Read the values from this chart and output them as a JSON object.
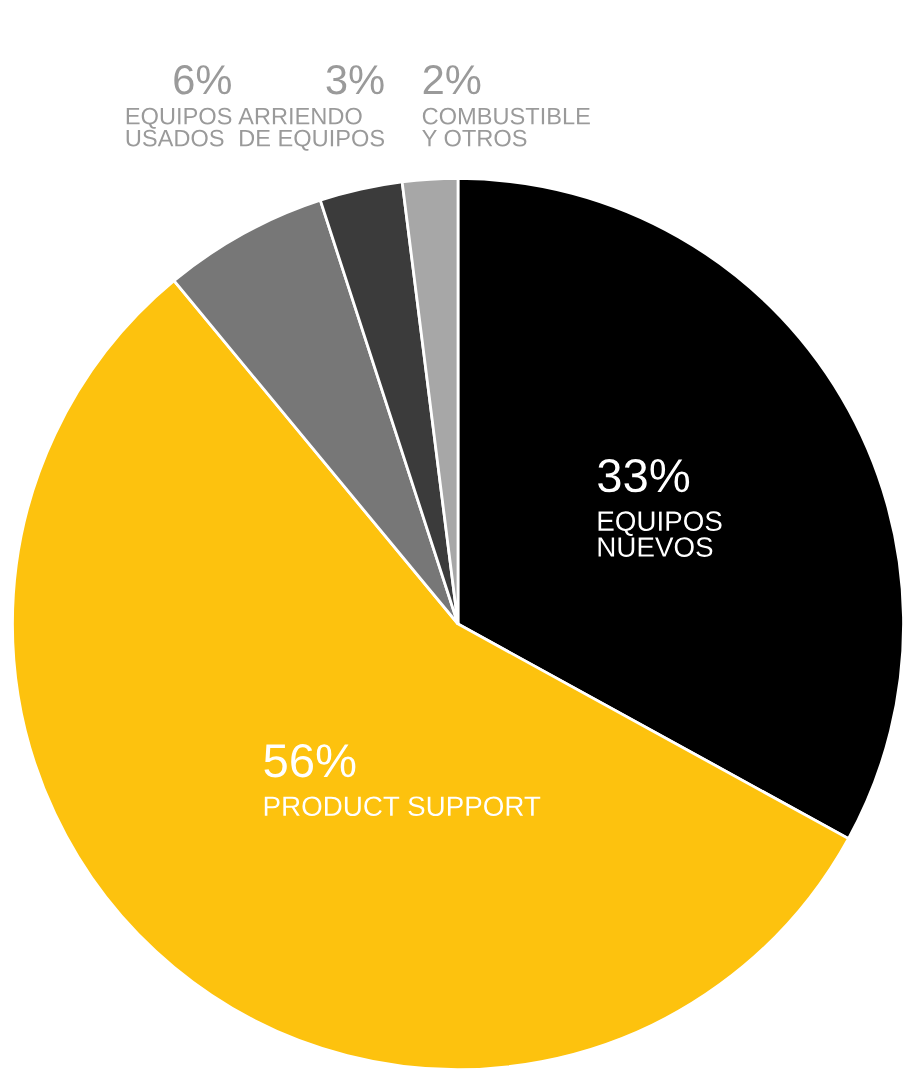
{
  "chart_data": {
    "type": "pie",
    "categories": [
      "EQUIPOS\nNUEVOS",
      "PRODUCT SUPPORT",
      "EQUIPOS\nUSADOS",
      "ARRIENDO\nDE EQUIPOS",
      "COMBUSTIBLE\nY OTROS"
    ],
    "values": [
      33,
      56,
      6,
      3,
      2
    ],
    "value_labels": [
      "33%",
      "56%",
      "6%",
      "3%",
      "2%"
    ],
    "colors": [
      "#000000",
      "#fdc20e",
      "#777777",
      "#3b3b3b",
      "#a7a7a7"
    ],
    "legend": false
  }
}
